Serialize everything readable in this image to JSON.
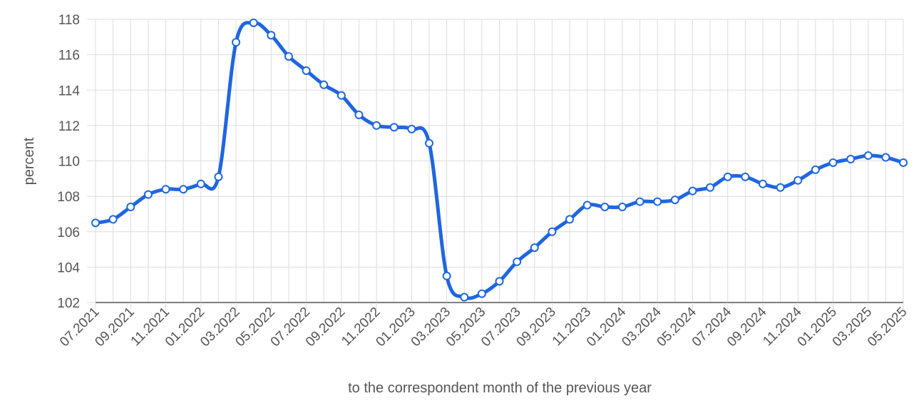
{
  "chart_data": {
    "type": "line",
    "title": "",
    "xlabel": "to the correspondent month of the previous year",
    "ylabel": "percent",
    "ylim": [
      102,
      118
    ],
    "yticks": [
      102,
      104,
      106,
      108,
      110,
      112,
      114,
      116,
      118
    ],
    "grid": true,
    "legend": "none",
    "line_color": "#1f66e0",
    "x": [
      "07.2021",
      "08.2021",
      "09.2021",
      "10.2021",
      "11.2021",
      "12.2021",
      "01.2022",
      "02.2022",
      "03.2022",
      "04.2022",
      "05.2022",
      "06.2022",
      "07.2022",
      "08.2022",
      "09.2022",
      "10.2022",
      "11.2022",
      "12.2022",
      "01.2023",
      "02.2023",
      "03.2023",
      "04.2023",
      "05.2023",
      "06.2023",
      "07.2023",
      "08.2023",
      "09.2023",
      "10.2023",
      "11.2023",
      "12.2023",
      "01.2024",
      "02.2024",
      "03.2024",
      "04.2024",
      "05.2024",
      "06.2024",
      "07.2024",
      "08.2024",
      "09.2024",
      "10.2024",
      "11.2024",
      "12.2024",
      "01.2025",
      "02.2025",
      "03.2025",
      "04.2025",
      "05.2025"
    ],
    "xtick_labels": [
      "07.2021",
      "09.2021",
      "11.2021",
      "01.2022",
      "03.2022",
      "05.2022",
      "07.2022",
      "09.2022",
      "11.2022",
      "01.2023",
      "03.2023",
      "05.2023",
      "07.2023",
      "09.2023",
      "11.2023",
      "01.2024",
      "03.2024",
      "05.2024",
      "07.2024",
      "09.2024",
      "11.2024",
      "01.2025",
      "03.2025",
      "05.2025"
    ],
    "series": [
      {
        "values": [
          106.5,
          106.7,
          107.4,
          108.1,
          108.4,
          108.4,
          108.7,
          109.1,
          116.7,
          117.8,
          117.1,
          115.9,
          115.1,
          114.3,
          113.7,
          112.6,
          112.0,
          111.9,
          111.8,
          111.0,
          103.5,
          102.3,
          102.5,
          103.2,
          104.3,
          105.1,
          106.0,
          106.7,
          107.5,
          107.4,
          107.4,
          107.7,
          107.7,
          107.8,
          108.3,
          108.5,
          109.1,
          109.1,
          108.7,
          108.5,
          108.9,
          109.5,
          109.9,
          110.1,
          110.3,
          110.2,
          109.9
        ]
      }
    ]
  }
}
